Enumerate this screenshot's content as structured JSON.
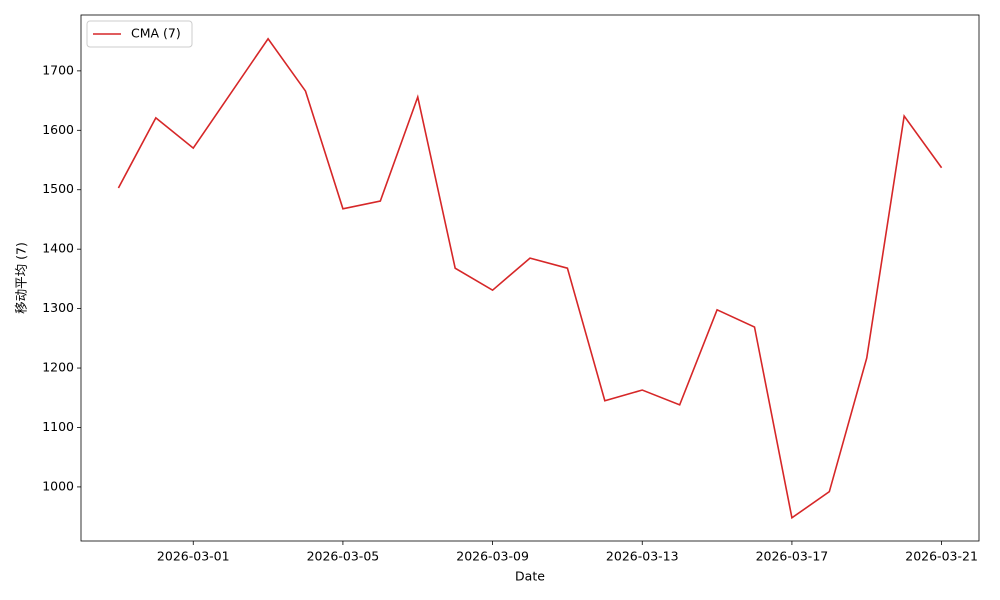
{
  "chart_data": {
    "type": "line",
    "x_label": "Date",
    "y_label": "移动平均 (7)",
    "x": [
      "2026-02-27",
      "2026-02-28",
      "2026-03-01",
      "2026-03-02",
      "2026-03-03",
      "2026-03-04",
      "2026-03-05",
      "2026-03-06",
      "2026-03-07",
      "2026-03-08",
      "2026-03-09",
      "2026-03-10",
      "2026-03-11",
      "2026-03-12",
      "2026-03-13",
      "2026-03-14",
      "2026-03-15",
      "2026-03-16",
      "2026-03-17",
      "2026-03-18",
      "2026-03-19",
      "2026-03-20",
      "2026-03-21"
    ],
    "series": [
      {
        "name": "CMA (7)",
        "color": "#d62728",
        "values": [
          1503,
          1621,
          1570,
          1662,
          1754,
          1666,
          1468,
          1481,
          1656,
          1368,
          1331,
          1385,
          1368,
          1145,
          1163,
          1138,
          1298,
          1269,
          948,
          992,
          1217,
          1624,
          1537
        ]
      }
    ],
    "xlim": [
      "2026-02-26",
      "2026-03-22"
    ],
    "xticks": [
      "2026-03-01",
      "2026-03-05",
      "2026-03-09",
      "2026-03-13",
      "2026-03-17",
      "2026-03-21"
    ],
    "ylim": [
      909,
      1794
    ],
    "yticks": [
      1000,
      1100,
      1200,
      1300,
      1400,
      1500,
      1600,
      1700
    ],
    "legend": "upper-left",
    "grid": false
  }
}
